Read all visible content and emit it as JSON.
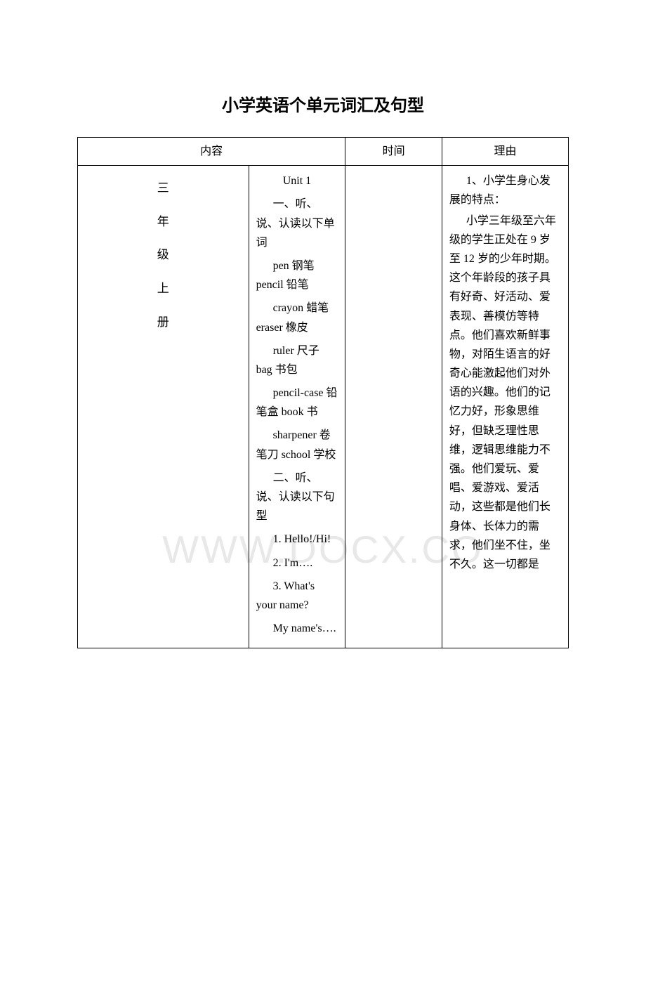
{
  "title": "小学英语个单元词汇及句型",
  "watermark": "WWW.DOCX.CO",
  "table": {
    "headers": {
      "content": "内容",
      "time": "时间",
      "reason": "理由"
    },
    "col1_vertical": [
      "三",
      "年",
      "级",
      "上",
      "册"
    ],
    "col2_content": {
      "unit": "Unit 1",
      "section1_title": "一、听、说、认读以下单词",
      "words": [
        "pen 钢笔 pencil 铅笔",
        "crayon 蜡笔 eraser 橡皮",
        "ruler 尺子  bag 书包",
        "pencil-case 铅笔盒 book 书",
        "sharpener 卷笔刀 school 学校"
      ],
      "section2_title": "二、听、说、认读以下句型",
      "sentences": [
        "1. Hello!/Hi!",
        "2. I'm….",
        "3. What's your name?",
        "My name's…."
      ]
    },
    "col4_reason": {
      "point1_title": "1、小学生身心发展的特点：",
      "point1_body": "小学三年级至六年级的学生正处在 9 岁至 12 岁的少年时期。这个年龄段的孩子具有好奇、好活动、爱表现、善模仿等特点。他们喜欢新鲜事物，对陌生语言的好奇心能激起他们对外语的兴趣。他们的记忆力好，形象思维好，但缺乏理性思维，逻辑思维能力不强。他们爱玩、爱唱、爱游戏、爱活动，这些都是他们长身体、长体力的需求，他们坐不住，坐不久。这一切都是"
    }
  },
  "styling": {
    "background_color": "#ffffff",
    "text_color": "#000000",
    "border_color": "#000000",
    "watermark_color": "#e8e8e8",
    "title_fontsize": 24,
    "body_fontsize": 16,
    "font_family": "SimSun"
  }
}
